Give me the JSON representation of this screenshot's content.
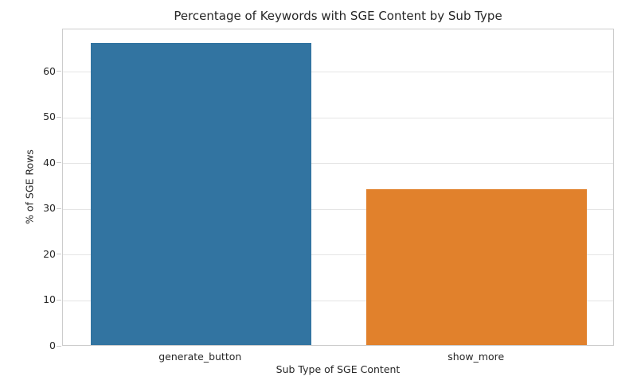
{
  "chart_data": {
    "type": "bar",
    "title": "Percentage of Keywords with SGE Content by Sub Type",
    "xlabel": "Sub Type of SGE Content",
    "ylabel": "% of SGE Rows",
    "categories": [
      "generate_button",
      "show_more"
    ],
    "values": [
      66,
      34
    ],
    "bar_colors": [
      "#3274a1",
      "#e1812c"
    ],
    "yticks": [
      0,
      10,
      20,
      30,
      40,
      50,
      60
    ],
    "ylim": [
      0,
      69.3
    ],
    "grid": "horizontal-light-gray",
    "legend": "none",
    "spine_color": "#cccccc",
    "grid_color": "#e5e5e5",
    "background_color": "#ffffff",
    "bar_width_fraction": 0.8
  }
}
